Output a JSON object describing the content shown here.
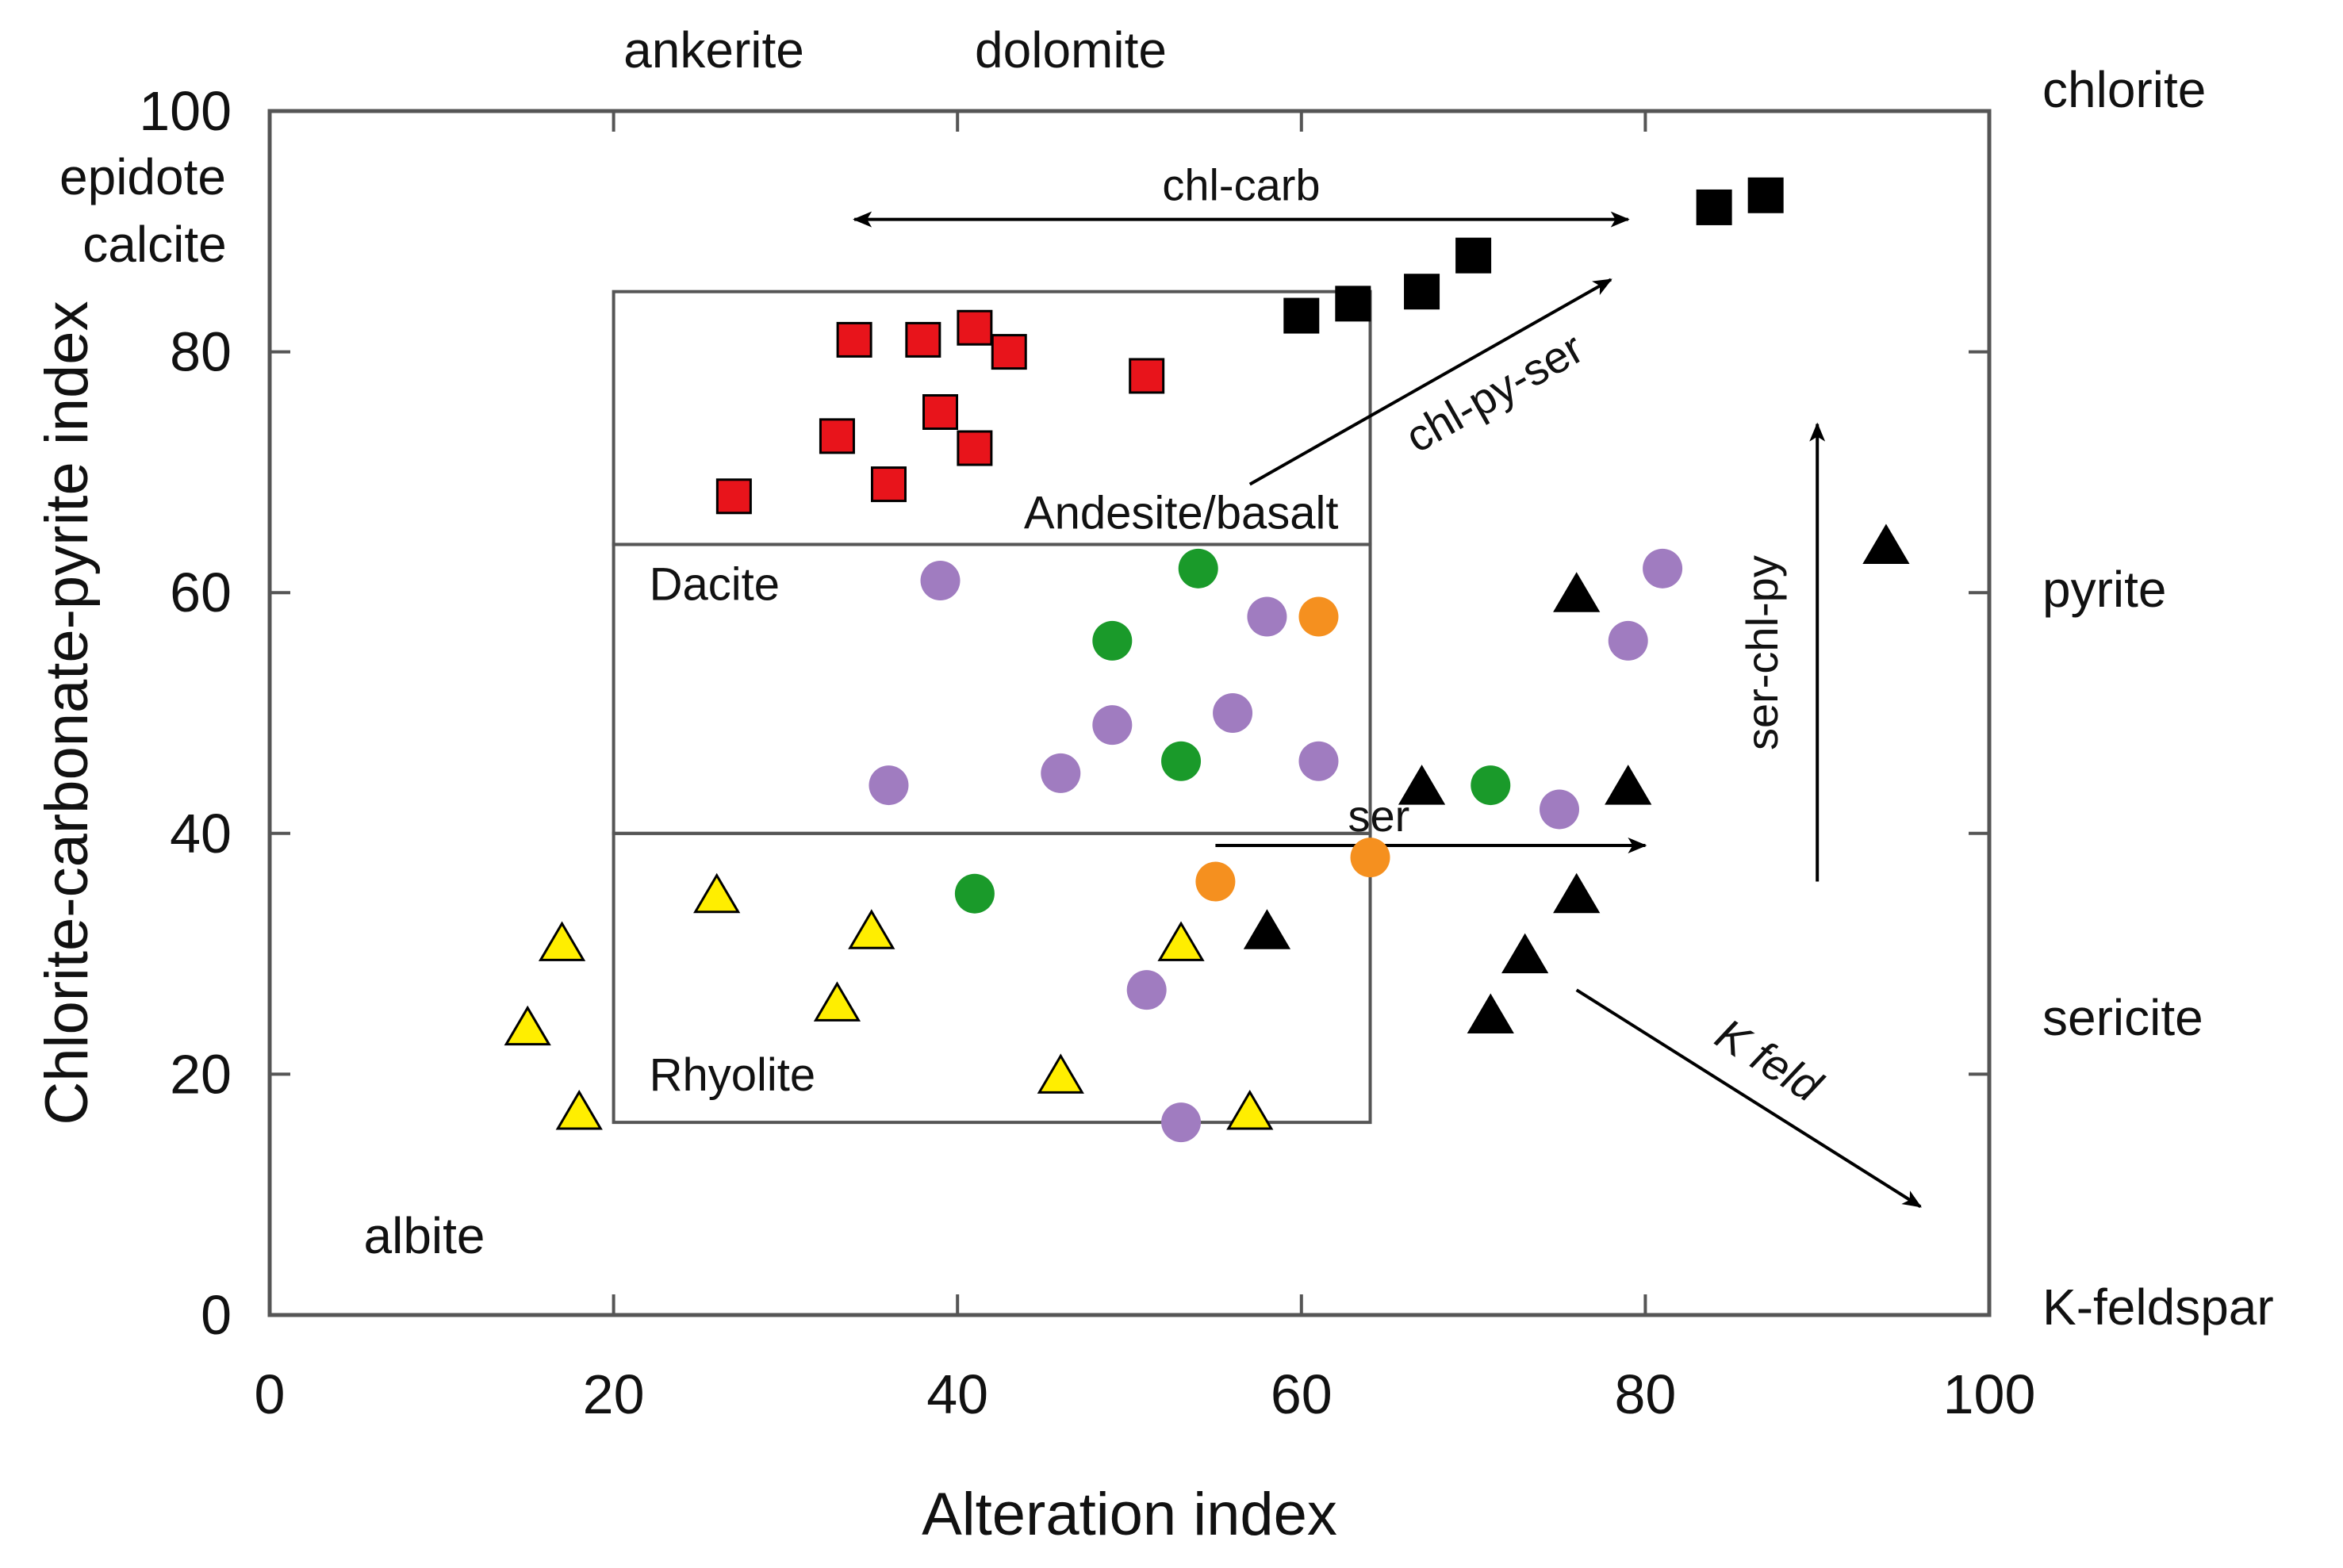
{
  "chart_data": {
    "type": "scatter",
    "title": "",
    "xlabel": "Alteration index",
    "ylabel": "Chlorite-carbonate-pyrite index",
    "xlim": [
      0,
      100
    ],
    "ylim": [
      0,
      100
    ],
    "xticks": [
      0,
      20,
      40,
      60,
      80,
      100
    ],
    "yticks": [
      0,
      20,
      40,
      60,
      80,
      100
    ],
    "grid": false,
    "top_labels": [
      "ankerite",
      "dolomite"
    ],
    "left_labels": [
      "epidote",
      "calcite",
      "albite"
    ],
    "right_labels": [
      "chlorite",
      "pyrite",
      "sericite",
      "K-feldspar"
    ],
    "series": [
      {
        "name": "red squares",
        "marker": "square",
        "color": "#e8141b",
        "points": [
          [
            27,
            68
          ],
          [
            33,
            73
          ],
          [
            34,
            81
          ],
          [
            36,
            69
          ],
          [
            38,
            81
          ],
          [
            39,
            75
          ],
          [
            41,
            82
          ],
          [
            41,
            72
          ],
          [
            43,
            80
          ],
          [
            51,
            78
          ]
        ]
      },
      {
        "name": "black squares",
        "marker": "square",
        "color": "#000000",
        "points": [
          [
            60,
            83
          ],
          [
            63,
            84
          ],
          [
            67,
            85
          ],
          [
            70,
            88
          ],
          [
            84,
            92
          ],
          [
            87,
            93
          ]
        ]
      },
      {
        "name": "purple circles",
        "marker": "circle",
        "color": "#a07cc0",
        "points": [
          [
            36,
            44
          ],
          [
            39,
            61
          ],
          [
            46,
            45
          ],
          [
            49,
            49
          ],
          [
            51,
            27
          ],
          [
            53,
            16
          ],
          [
            56,
            50
          ],
          [
            58,
            58
          ],
          [
            61,
            46
          ],
          [
            75,
            42
          ],
          [
            79,
            56
          ],
          [
            81,
            62
          ]
        ]
      },
      {
        "name": "green circles",
        "marker": "circle",
        "color": "#1a9a2a",
        "points": [
          [
            41,
            35
          ],
          [
            49,
            56
          ],
          [
            53,
            46
          ],
          [
            54,
            62
          ],
          [
            71,
            44
          ]
        ]
      },
      {
        "name": "orange circles",
        "marker": "circle",
        "color": "#f5901f",
        "points": [
          [
            55,
            36
          ],
          [
            61,
            58
          ],
          [
            64,
            38
          ]
        ]
      },
      {
        "name": "yellow triangles",
        "marker": "triangle",
        "color": "#ffee00",
        "points": [
          [
            15,
            24
          ],
          [
            17,
            31
          ],
          [
            18,
            17
          ],
          [
            26,
            35
          ],
          [
            33,
            26
          ],
          [
            35,
            32
          ],
          [
            46,
            20
          ],
          [
            53,
            31
          ],
          [
            57,
            17
          ]
        ]
      },
      {
        "name": "black triangles",
        "marker": "triangle",
        "color": "#000000",
        "points": [
          [
            58,
            32
          ],
          [
            67,
            44
          ],
          [
            71,
            25
          ],
          [
            73,
            30
          ],
          [
            76,
            60
          ],
          [
            76,
            35
          ],
          [
            79,
            44
          ],
          [
            94,
            64
          ]
        ]
      }
    ],
    "fields": [
      {
        "label": "Andesite/basalt",
        "x": [
          20,
          64
        ],
        "y": [
          64,
          85
        ]
      },
      {
        "label": "Dacite",
        "x": [
          20,
          64
        ],
        "y": [
          40,
          64
        ]
      },
      {
        "label": "Rhyolite",
        "x": [
          20,
          64
        ],
        "y": [
          16,
          40
        ]
      }
    ],
    "annotations": [
      {
        "label": "chl-carb",
        "from": [
          34,
          91
        ],
        "to": [
          79,
          91
        ],
        "double": true
      },
      {
        "label": "chl-py-ser",
        "from": [
          57,
          69
        ],
        "to": [
          78,
          86
        ],
        "double": false
      },
      {
        "label": "ser",
        "from": [
          55,
          39
        ],
        "to": [
          80,
          39
        ],
        "double": false
      },
      {
        "label": "ser-chl-py",
        "from": [
          90,
          36
        ],
        "to": [
          90,
          74
        ],
        "double": false
      },
      {
        "label": "K feld",
        "from": [
          76,
          27
        ],
        "to": [
          96,
          9
        ],
        "double": false
      }
    ]
  }
}
